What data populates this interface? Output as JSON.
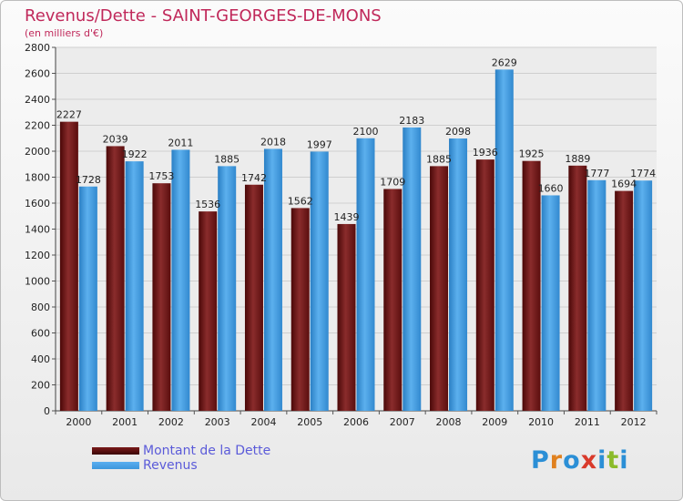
{
  "header": {
    "title": "Revenus/Dette - SAINT-GEORGES-DE-MONS",
    "subtitle": "(en milliers d'€)"
  },
  "logo": {
    "text": "Proxiti",
    "letter_colors": [
      "#2b8fd6",
      "#e0811f",
      "#2b8fd6",
      "#d93a2b",
      "#2b8fd6",
      "#8bbb2a",
      "#2b8fd6"
    ]
  },
  "colors": {
    "dette": "#7a1a1a",
    "revenus": "#3d97dc",
    "title": "#c0285a",
    "legend_text": "#5b5bd9"
  },
  "chart_data": {
    "type": "bar",
    "categories": [
      "2000",
      "2001",
      "2002",
      "2003",
      "2004",
      "2005",
      "2006",
      "2007",
      "2008",
      "2009",
      "2010",
      "2011",
      "2012"
    ],
    "series": [
      {
        "name": "Montant de la Dette",
        "values": [
          2227,
          2039,
          1753,
          1536,
          1742,
          1562,
          1439,
          1709,
          1885,
          1936,
          1925,
          1889,
          1694
        ]
      },
      {
        "name": "Revenus",
        "values": [
          1728,
          1922,
          2011,
          1885,
          2018,
          1997,
          2100,
          2183,
          2098,
          2629,
          1660,
          1777,
          1774
        ]
      }
    ],
    "ylim": [
      0,
      2800
    ],
    "yticks": [
      0,
      200,
      400,
      600,
      800,
      1000,
      1200,
      1400,
      1600,
      1800,
      2000,
      2200,
      2400,
      2600,
      2800
    ],
    "grid": true,
    "legend": "bottom-left"
  }
}
